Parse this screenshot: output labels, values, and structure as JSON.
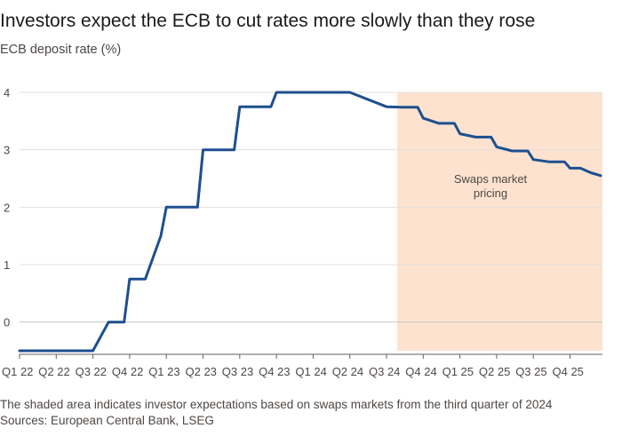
{
  "header": {
    "title": "Investors expect the ECB to cut rates more slowly than they rose",
    "subtitle": "ECB deposit rate (%)"
  },
  "footer": {
    "note": "The shaded area indicates investor expectations based on swaps markets from the third quarter of 2024",
    "source": "Sources: European Central Bank, LSEG"
  },
  "colors": {
    "line": "#1e4f8f",
    "shade": "#fde3cf",
    "grid": "#e4e0dc",
    "zero_line": "#c8c3bf",
    "axis": "#66605c"
  },
  "chart_data": {
    "type": "line",
    "title": "Investors expect the ECB to cut rates more slowly than they rose",
    "ylabel": "ECB deposit rate (%)",
    "xlabel": "",
    "ylim": [
      -0.5,
      4
    ],
    "yticks": [
      0,
      1,
      2,
      3,
      4
    ],
    "grid": true,
    "xlim": [
      "Q1 22",
      "Q4 25"
    ],
    "x_tick_labels": [
      "Q1 22",
      "Q2 22",
      "Q3 22",
      "Q4 22",
      "Q1 23",
      "Q2 23",
      "Q3 23",
      "Q4 23",
      "Q1 24",
      "Q2 24",
      "Q3 24",
      "Q4 24",
      "Q1 25",
      "Q2 25",
      "Q3 25",
      "Q4 25"
    ],
    "shaded_region": {
      "from": "Q3 24",
      "to": "Q4 25",
      "label_lines": [
        "Swaps market",
        "pricing"
      ]
    },
    "series": [
      {
        "points": [
          {
            "x": "Q1 22",
            "y": -0.5
          },
          {
            "x": "Q3 22",
            "y": -0.5
          },
          {
            "x": "Q3 22",
            "y": 0
          },
          {
            "x": "Q3 22",
            "y": 0
          },
          {
            "x": "Q4 22",
            "y": 0.75
          },
          {
            "x": "Q4 22",
            "y": 0.75
          },
          {
            "x": "Q4 22",
            "y": 1.5
          },
          {
            "x": "Q1 23",
            "y": 2
          },
          {
            "x": "Q1 23",
            "y": 2
          },
          {
            "x": "Q2 23",
            "y": 3
          },
          {
            "x": "Q2 23",
            "y": 3
          },
          {
            "x": "Q3 23",
            "y": 3.75
          },
          {
            "x": "Q3 23",
            "y": 3.75
          },
          {
            "x": "Q4 23",
            "y": 4
          },
          {
            "x": "Q2 24",
            "y": 4
          },
          {
            "x": "Q3 24",
            "y": 3.75
          },
          {
            "x": "Q3 24",
            "y": 3.74
          },
          {
            "x": "Q3 24",
            "y": 3.74
          },
          {
            "x": "Q4 24",
            "y": 3.55
          },
          {
            "x": "Q4 24",
            "y": 3.46
          },
          {
            "x": "Q4 24",
            "y": 3.46
          },
          {
            "x": "Q1 25",
            "y": 3.28
          },
          {
            "x": "Q1 25",
            "y": 3.22
          },
          {
            "x": "Q1 25",
            "y": 3.22
          },
          {
            "x": "Q2 25",
            "y": 3.05
          },
          {
            "x": "Q2 25",
            "y": 2.98
          },
          {
            "x": "Q2 25",
            "y": 2.98
          },
          {
            "x": "Q3 25",
            "y": 2.83
          },
          {
            "x": "Q3 25",
            "y": 2.79
          },
          {
            "x": "Q3 25",
            "y": 2.79
          },
          {
            "x": "Q4 25",
            "y": 2.68
          },
          {
            "x": "Q4 25",
            "y": 2.68
          },
          {
            "x": "Q4 25",
            "y": 2.6
          },
          {
            "x": "Q4 25",
            "y": 2.55
          }
        ]
      }
    ]
  }
}
